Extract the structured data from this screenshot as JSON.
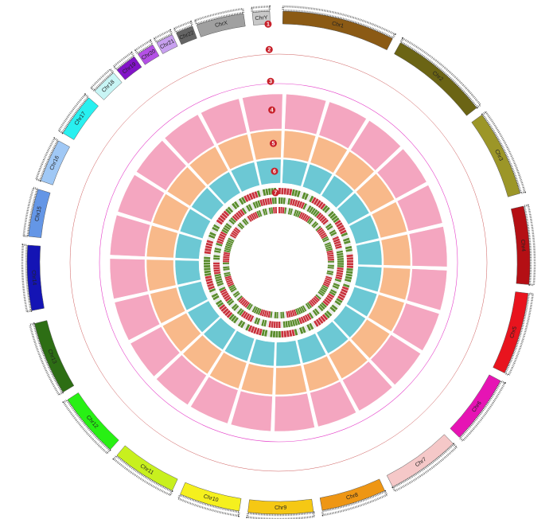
{
  "chromosomes": [
    {
      "label": "Chr1",
      "color": "#8b5a14"
    },
    {
      "label": "Chr2",
      "color": "#6b6414"
    },
    {
      "label": "Chr3",
      "color": "#9c9628"
    },
    {
      "label": "Chr4",
      "color": "#b40f14"
    },
    {
      "label": "Chr5",
      "color": "#e8141e"
    },
    {
      "label": "Chr6",
      "color": "#e614b4"
    },
    {
      "label": "Chr7",
      "color": "#f5c8c8"
    },
    {
      "label": "Chr8",
      "color": "#ee9614"
    },
    {
      "label": "Chr9",
      "color": "#f5c814"
    },
    {
      "label": "Chr10",
      "color": "#f5f01e"
    },
    {
      "label": "Chr11",
      "color": "#c8f01e"
    },
    {
      "label": "Chr12",
      "color": "#28f014"
    },
    {
      "label": "Chr13",
      "color": "#2d6e14"
    },
    {
      "label": "Chr14",
      "color": "#1414b4"
    },
    {
      "label": "Chr15",
      "color": "#6496e6"
    },
    {
      "label": "Chr16",
      "color": "#a0c8f5"
    },
    {
      "label": "Chr17",
      "color": "#28f0f0"
    },
    {
      "label": "Chr18",
      "color": "#c8f5f5"
    },
    {
      "label": "Chr19",
      "color": "#8214c8"
    },
    {
      "label": "Chr20",
      "color": "#b450e6"
    },
    {
      "label": "Chr21",
      "color": "#c8a0f0"
    },
    {
      "label": "Chr22",
      "color": "#646464"
    },
    {
      "label": "ChrX",
      "color": "#a0a0a0"
    },
    {
      "label": "ChrY",
      "color": "#c8c8c8"
    }
  ],
  "tracks": [
    "1",
    "2",
    "3",
    "4",
    "5",
    "6",
    "7"
  ]
}
